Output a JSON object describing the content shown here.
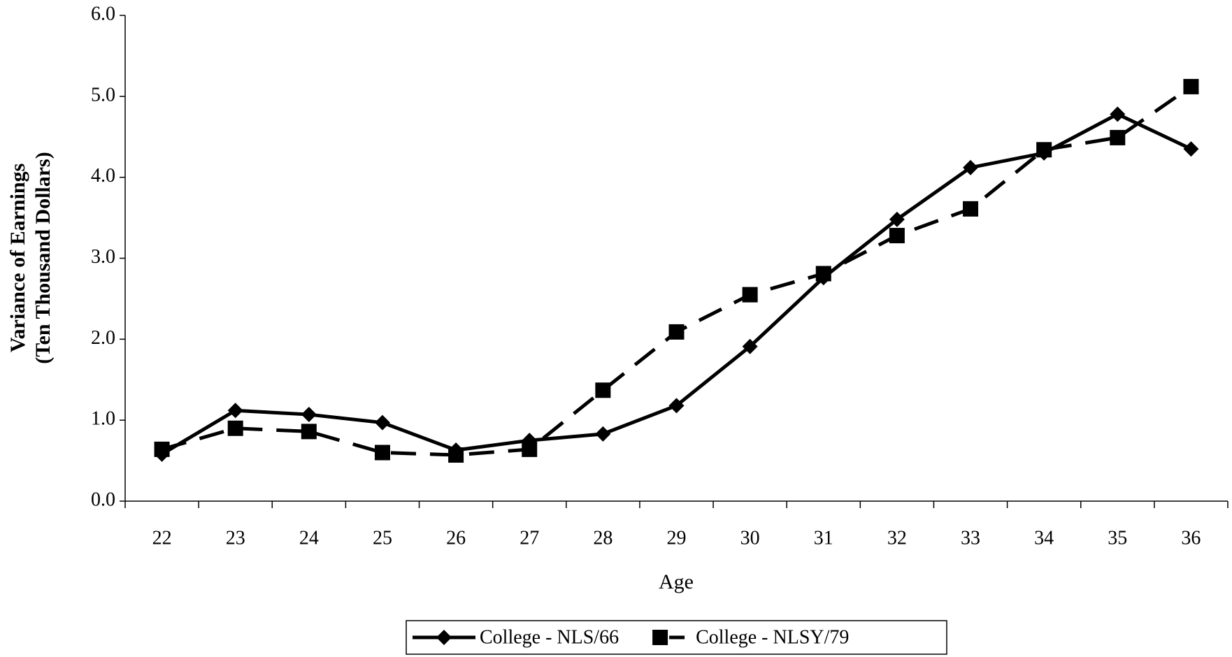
{
  "chart_data": {
    "type": "line",
    "ylabel": [
      "Variance of Earnings",
      "(Ten Thousand Dollars)"
    ],
    "xlabel": "Age",
    "categories": [
      "22",
      "23",
      "24",
      "25",
      "26",
      "27",
      "28",
      "29",
      "30",
      "31",
      "32",
      "33",
      "34",
      "35",
      "36"
    ],
    "series": [
      {
        "name": "College - NLS/66",
        "color": "#000000",
        "line_style": "solid",
        "marker": "diamond",
        "values": [
          0.58,
          1.12,
          1.07,
          0.97,
          0.63,
          0.75,
          0.83,
          1.18,
          1.91,
          2.76,
          3.48,
          4.12,
          4.3,
          4.78,
          4.35
        ]
      },
      {
        "name": "College - NLSY/79",
        "color": "#000000",
        "line_style": "dashed",
        "marker": "square",
        "values": [
          0.64,
          0.9,
          0.86,
          0.6,
          0.57,
          0.64,
          1.37,
          2.09,
          2.55,
          2.81,
          3.28,
          3.61,
          4.34,
          4.49,
          5.12
        ]
      }
    ],
    "ylim": [
      0,
      6
    ],
    "yticks": [
      {
        "value": 0,
        "label": "0.0"
      },
      {
        "value": 1,
        "label": "1.0"
      },
      {
        "value": 2,
        "label": "2.0"
      },
      {
        "value": 3,
        "label": "3.0"
      },
      {
        "value": 4,
        "label": "4.0"
      },
      {
        "value": 5,
        "label": "5.0"
      },
      {
        "value": 6,
        "label": "6.0"
      }
    ],
    "grid": false,
    "legend": "bottom"
  }
}
